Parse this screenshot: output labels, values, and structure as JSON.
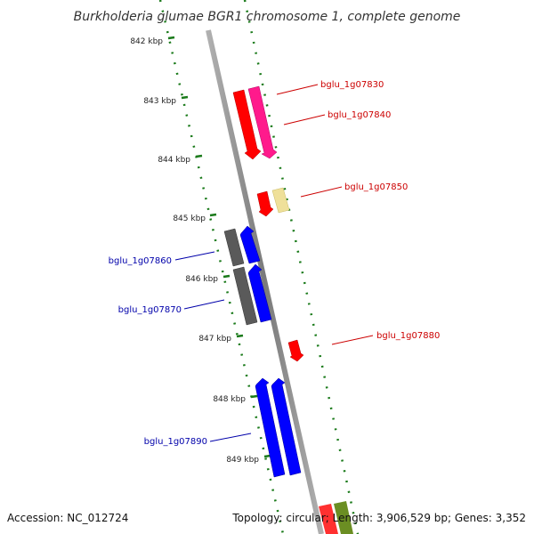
{
  "title": "Burkholderia glumae BGR1 chromosome 1, complete genome",
  "footer": {
    "accession": "Accession: NC_012724",
    "summary": "Topology: circular; Length: 3,906,529 bp; Genes: 3,352"
  },
  "ticks": [
    "842 kbp",
    "843 kbp",
    "844 kbp",
    "845 kbp",
    "846 kbp",
    "847 kbp",
    "848 kbp",
    "849 kbp"
  ],
  "genes": [
    {
      "id": "bglu_1g07830",
      "strand": "forward",
      "color": "#ff0000"
    },
    {
      "id": "bglu_1g07840",
      "strand": "forward",
      "color": "#ff1493"
    },
    {
      "id": "bglu_1g07850",
      "strand": "forward",
      "color": "#ff0000"
    },
    {
      "id": "bglu_1g07860",
      "strand": "reverse",
      "color": "#0000ff"
    },
    {
      "id": "bglu_1g07870",
      "strand": "reverse",
      "color": "#0000ff"
    },
    {
      "id": "bglu_1g07880",
      "strand": "forward",
      "color": "#ff0000"
    },
    {
      "id": "bglu_1g07890",
      "strand": "reverse",
      "color": "#0000ff"
    }
  ],
  "colors": {
    "forward_label": "#cc0000",
    "reverse_label": "#0000aa",
    "tick_dots": "#1a7a1a",
    "backbone": "#8a8a8a",
    "cog_gray": "#5a5a5a",
    "cog_beige": "#efe09a",
    "cog_olive": "#6b8e23"
  }
}
